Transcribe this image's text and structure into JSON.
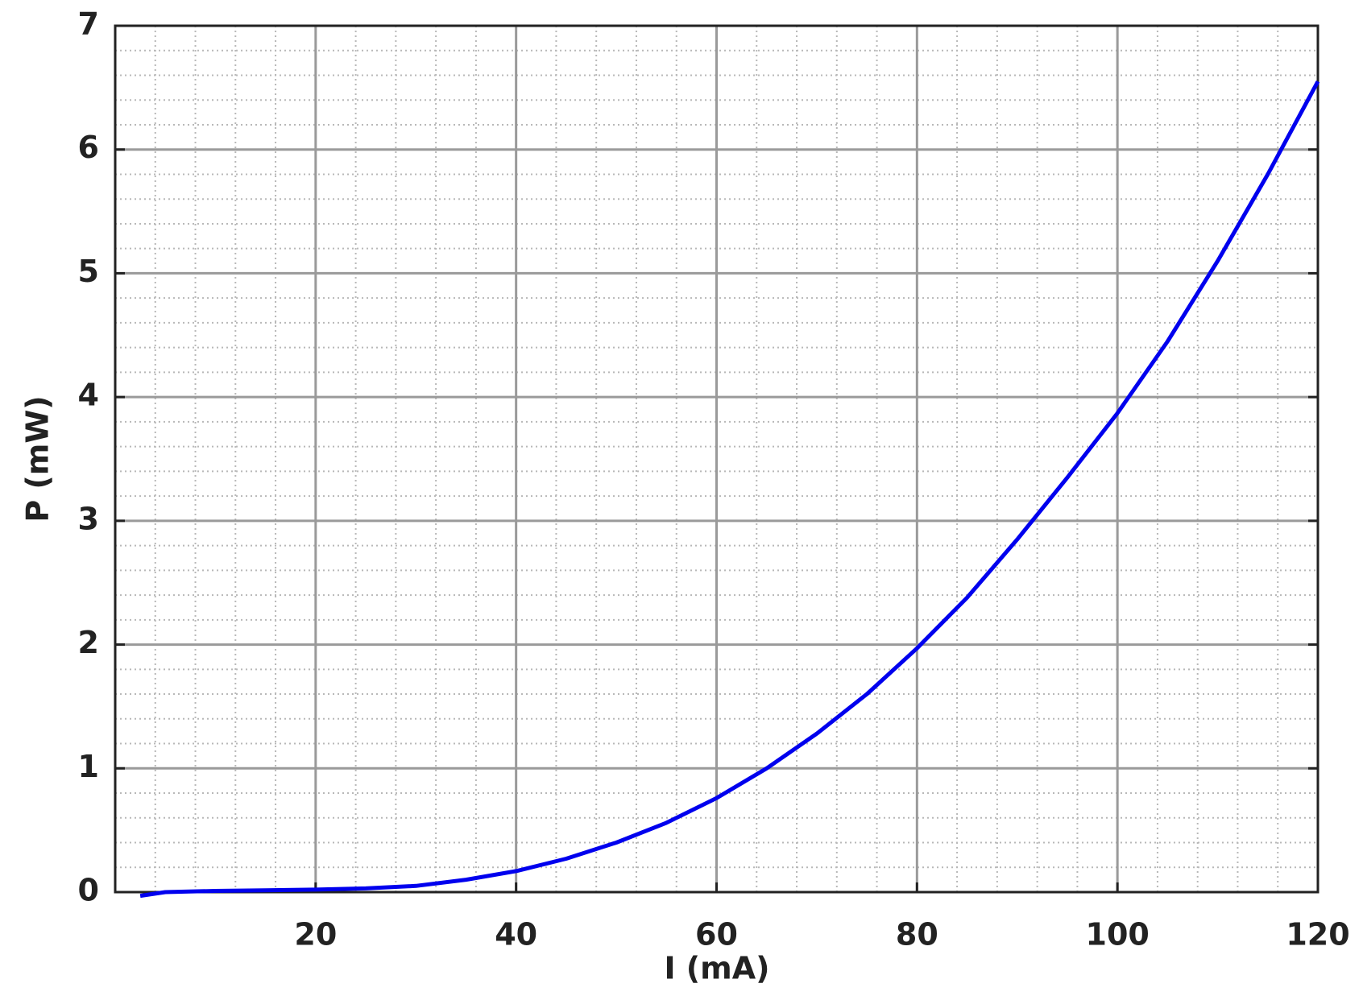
{
  "chart_data": {
    "type": "line",
    "x_label": "I (mA)",
    "y_label": "P (mW)",
    "x": [
      2.5,
      5,
      10,
      15,
      20,
      25,
      30,
      35,
      40,
      45,
      50,
      55,
      60,
      65,
      70,
      75,
      80,
      85,
      90,
      95,
      100,
      105,
      110,
      115,
      120
    ],
    "values": [
      -0.03,
      0,
      0.01,
      0.015,
      0.02,
      0.03,
      0.05,
      0.1,
      0.17,
      0.27,
      0.4,
      0.56,
      0.76,
      1.0,
      1.28,
      1.6,
      1.97,
      2.38,
      2.85,
      3.35,
      3.87,
      4.45,
      5.1,
      5.8,
      6.55
    ],
    "color": "#0000ee",
    "xlim": [
      0,
      120
    ],
    "xticks": [
      20,
      40,
      60,
      80,
      100,
      120
    ],
    "ylim": [
      0,
      7
    ],
    "yticks": [
      0,
      1,
      2,
      3,
      4,
      5,
      6,
      7
    ],
    "grid": true,
    "minor_grid": true
  }
}
